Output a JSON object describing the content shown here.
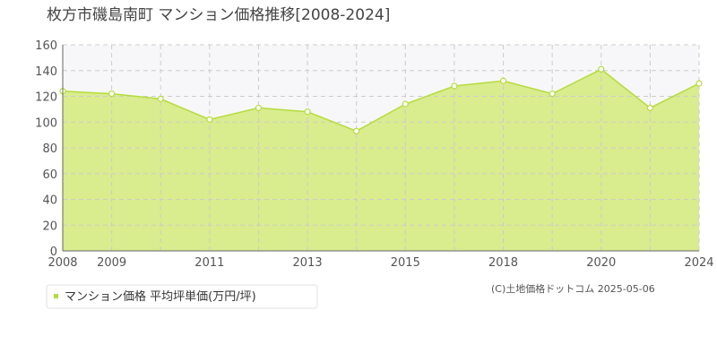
{
  "chart_data": {
    "type": "area",
    "title": "枚方市磯島南町 マンション価格推移[2008-2024]",
    "categories": [
      "2008",
      "2009",
      null,
      "2011",
      null,
      "2013",
      null,
      "2015",
      null,
      "2018",
      null,
      "2020",
      null,
      "2024"
    ],
    "series": [
      {
        "name": "マンション価格 平均坪単価(万円/坪)",
        "color": "#b5dc3c",
        "fill": "#d9ec8e",
        "values": [
          124,
          122,
          118,
          102,
          111,
          108,
          93,
          114,
          128,
          132,
          122,
          141,
          111,
          130
        ]
      }
    ],
    "ylim": [
      0,
      160
    ],
    "yticks": [
      0,
      20,
      40,
      60,
      80,
      100,
      120,
      140,
      160
    ],
    "grid": true,
    "source": "(C)土地価格ドットコム 2025-05-06"
  }
}
